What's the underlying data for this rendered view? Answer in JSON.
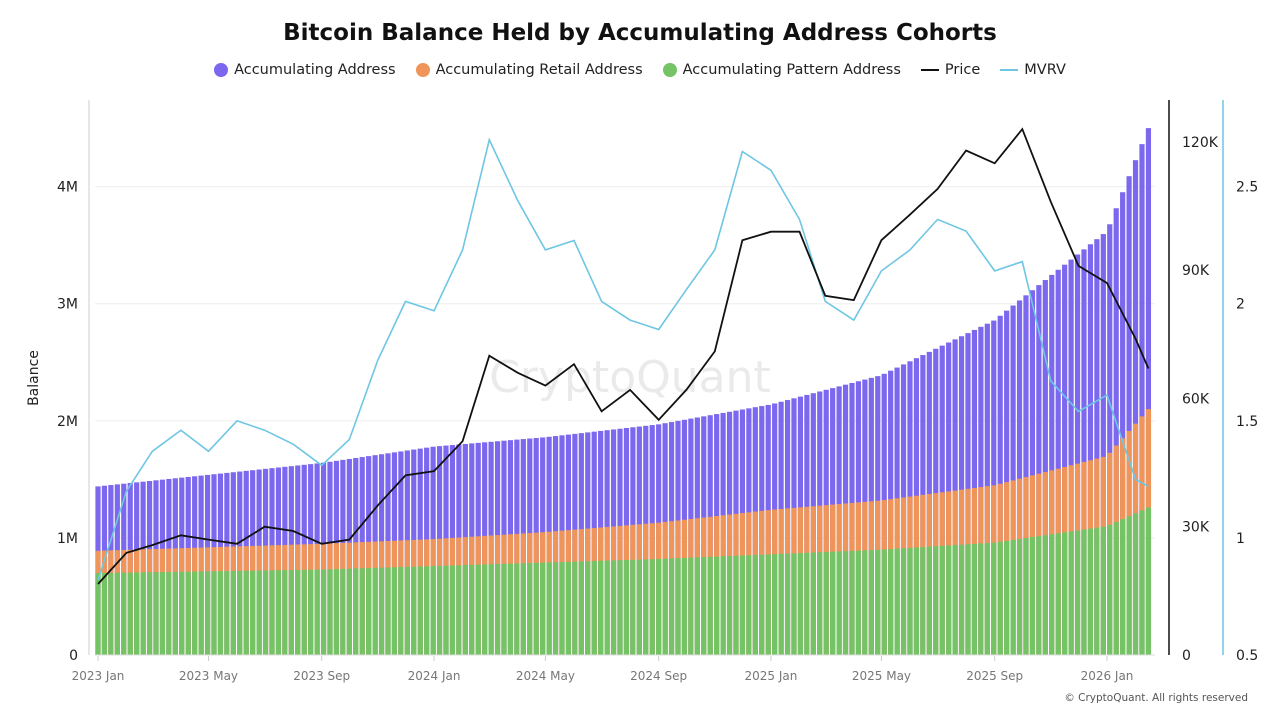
{
  "chart_data": {
    "type": "bar+line",
    "title": "Bitcoin Balance Held by Accumulating Address Cohorts",
    "ylabel": "Balance",
    "ylim": [
      0,
      4740000
    ],
    "yticks": [
      "0",
      "1M",
      "2M",
      "3M",
      "4M"
    ],
    "price_axis": {
      "ylim": [
        0,
        129800
      ],
      "ticks": [
        "0",
        "30K",
        "60K",
        "90K",
        "120K"
      ]
    },
    "mvrv_axis": {
      "ylim": [
        0.5,
        2.87
      ],
      "ticks": [
        "0.5",
        "1",
        "1.5",
        "2",
        "2.5"
      ]
    },
    "xticks": [
      "2023 Jan",
      "2023 May",
      "2023 Sep",
      "2024 Jan",
      "2024 May",
      "2024 Sep",
      "2025 Jan",
      "2025 May",
      "2025 Sep",
      "2026 Jan"
    ],
    "xtick_dates": [
      "2023-01-01",
      "2023-05-01",
      "2023-09-01",
      "2024-01-01",
      "2024-05-01",
      "2024-09-01",
      "2025-01-01",
      "2025-05-01",
      "2025-09-01",
      "2026-01-01"
    ],
    "grid": true,
    "legend_position": "top",
    "watermark": "CryptoQuant",
    "copyright": "© CryptoQuant. All rights reserved",
    "colors": {
      "accumulating": "#7b68ee",
      "retail": "#f0955a",
      "pattern": "#74c465",
      "price": "#111111",
      "mvrv": "#6ec6e3"
    },
    "balance_dates": [
      "2023-01-01",
      "2023-09-01",
      "2024-01-01",
      "2024-05-01",
      "2024-09-01",
      "2025-01-01",
      "2025-05-01",
      "2025-09-01",
      "2026-01-01",
      "2026-02-15"
    ],
    "series": [
      {
        "name": "Accumulating Address",
        "kind": "bar",
        "values": [
          1440000,
          1640000,
          1780000,
          1860000,
          1970000,
          2140000,
          2390000,
          2860000,
          3620000,
          4500000
        ]
      },
      {
        "name": "Accumulating Retail Address",
        "kind": "bar",
        "values": [
          890000,
          950000,
          990000,
          1050000,
          1130000,
          1240000,
          1320000,
          1450000,
          1700000,
          2100000
        ]
      },
      {
        "name": "Accumulating Pattern Address",
        "kind": "bar",
        "values": [
          700000,
          730000,
          760000,
          790000,
          820000,
          860000,
          900000,
          960000,
          1100000,
          1260000
        ]
      }
    ],
    "line_dates": [
      "2023-01-01",
      "2023-02-01",
      "2023-03-01",
      "2023-04-01",
      "2023-05-01",
      "2023-06-01",
      "2023-07-01",
      "2023-08-01",
      "2023-09-01",
      "2023-10-01",
      "2023-11-01",
      "2023-12-01",
      "2024-01-01",
      "2024-02-01",
      "2024-03-01",
      "2024-04-01",
      "2024-05-01",
      "2024-06-01",
      "2024-07-01",
      "2024-08-01",
      "2024-09-01",
      "2024-10-01",
      "2024-11-01",
      "2024-12-01",
      "2025-01-01",
      "2025-02-01",
      "2025-03-01",
      "2025-04-01",
      "2025-05-01",
      "2025-06-01",
      "2025-07-01",
      "2025-08-01",
      "2025-09-01",
      "2025-10-01",
      "2025-11-01",
      "2025-12-01",
      "2026-01-01",
      "2026-02-01",
      "2026-02-15"
    ],
    "price": {
      "name": "Price",
      "values": [
        16600,
        23900,
        25700,
        28000,
        27000,
        26000,
        30000,
        29000,
        26000,
        27000,
        35000,
        42000,
        43000,
        50000,
        70000,
        66000,
        63000,
        68000,
        57000,
        62000,
        55000,
        62000,
        71000,
        97000,
        99000,
        99000,
        84000,
        83000,
        97000,
        103000,
        109000,
        118000,
        115000,
        123000,
        106000,
        91000,
        87000,
        74000,
        67000
      ]
    },
    "mvrv": {
      "name": "MVRV",
      "values": [
        0.82,
        1.2,
        1.37,
        1.46,
        1.37,
        1.5,
        1.46,
        1.4,
        1.31,
        1.42,
        1.76,
        2.01,
        1.97,
        2.23,
        2.7,
        2.44,
        2.23,
        2.27,
        2.01,
        1.93,
        1.89,
        2.06,
        2.23,
        2.65,
        2.57,
        2.36,
        2.01,
        1.93,
        2.14,
        2.23,
        2.36,
        2.31,
        2.14,
        2.18,
        1.67,
        1.54,
        1.61,
        1.25,
        1.22
      ]
    }
  }
}
